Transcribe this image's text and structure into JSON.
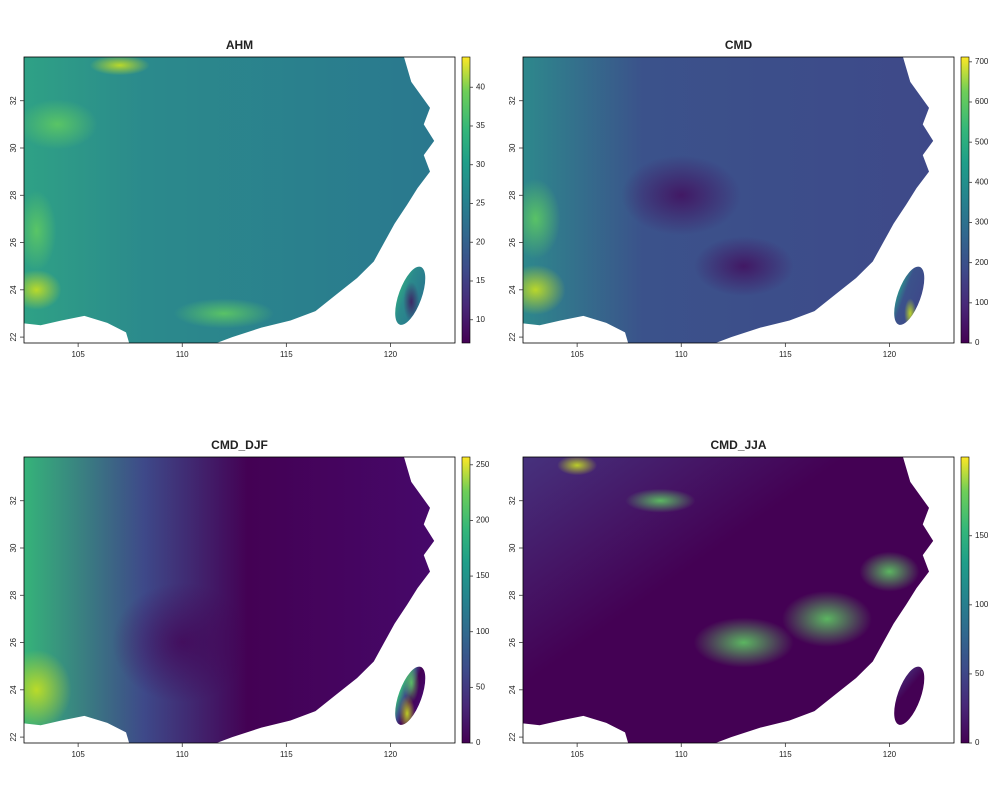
{
  "panels": [
    {
      "title": "AHM",
      "xlim": [
        102.4,
        123.1
      ],
      "ylim": [
        21.75,
        33.85
      ],
      "xticks": [
        105,
        110,
        115,
        120
      ],
      "yticks": [
        22,
        24,
        26,
        28,
        30,
        32
      ],
      "colorbar": {
        "lim": [
          7,
          43.9
        ],
        "ticks": [
          10,
          15,
          20,
          25,
          30,
          35,
          40
        ]
      }
    },
    {
      "title": "CMD",
      "xlim": [
        102.4,
        123.1
      ],
      "ylim": [
        21.75,
        33.85
      ],
      "xticks": [
        105,
        110,
        115,
        120
      ],
      "yticks": [
        22,
        24,
        26,
        28,
        30,
        32
      ],
      "colorbar": {
        "lim": [
          0,
          712
        ],
        "ticks": [
          0,
          100,
          200,
          300,
          400,
          500,
          600,
          700
        ]
      }
    },
    {
      "title": "CMD_DJF",
      "xlim": [
        102.4,
        123.1
      ],
      "ylim": [
        21.75,
        33.85
      ],
      "xticks": [
        105,
        110,
        115,
        120
      ],
      "yticks": [
        22,
        24,
        26,
        28,
        30,
        32
      ],
      "colorbar": {
        "lim": [
          0,
          257
        ],
        "ticks": [
          0,
          50,
          100,
          150,
          200,
          250
        ]
      }
    },
    {
      "title": "CMD_JJA",
      "xlim": [
        102.4,
        123.1
      ],
      "ylim": [
        21.75,
        33.85
      ],
      "xticks": [
        105,
        110,
        115,
        120
      ],
      "yticks": [
        22,
        24,
        26,
        28,
        30,
        32
      ],
      "colorbar": {
        "lim": [
          0,
          207
        ],
        "ticks": [
          0,
          50,
          100,
          150
        ]
      }
    }
  ]
}
